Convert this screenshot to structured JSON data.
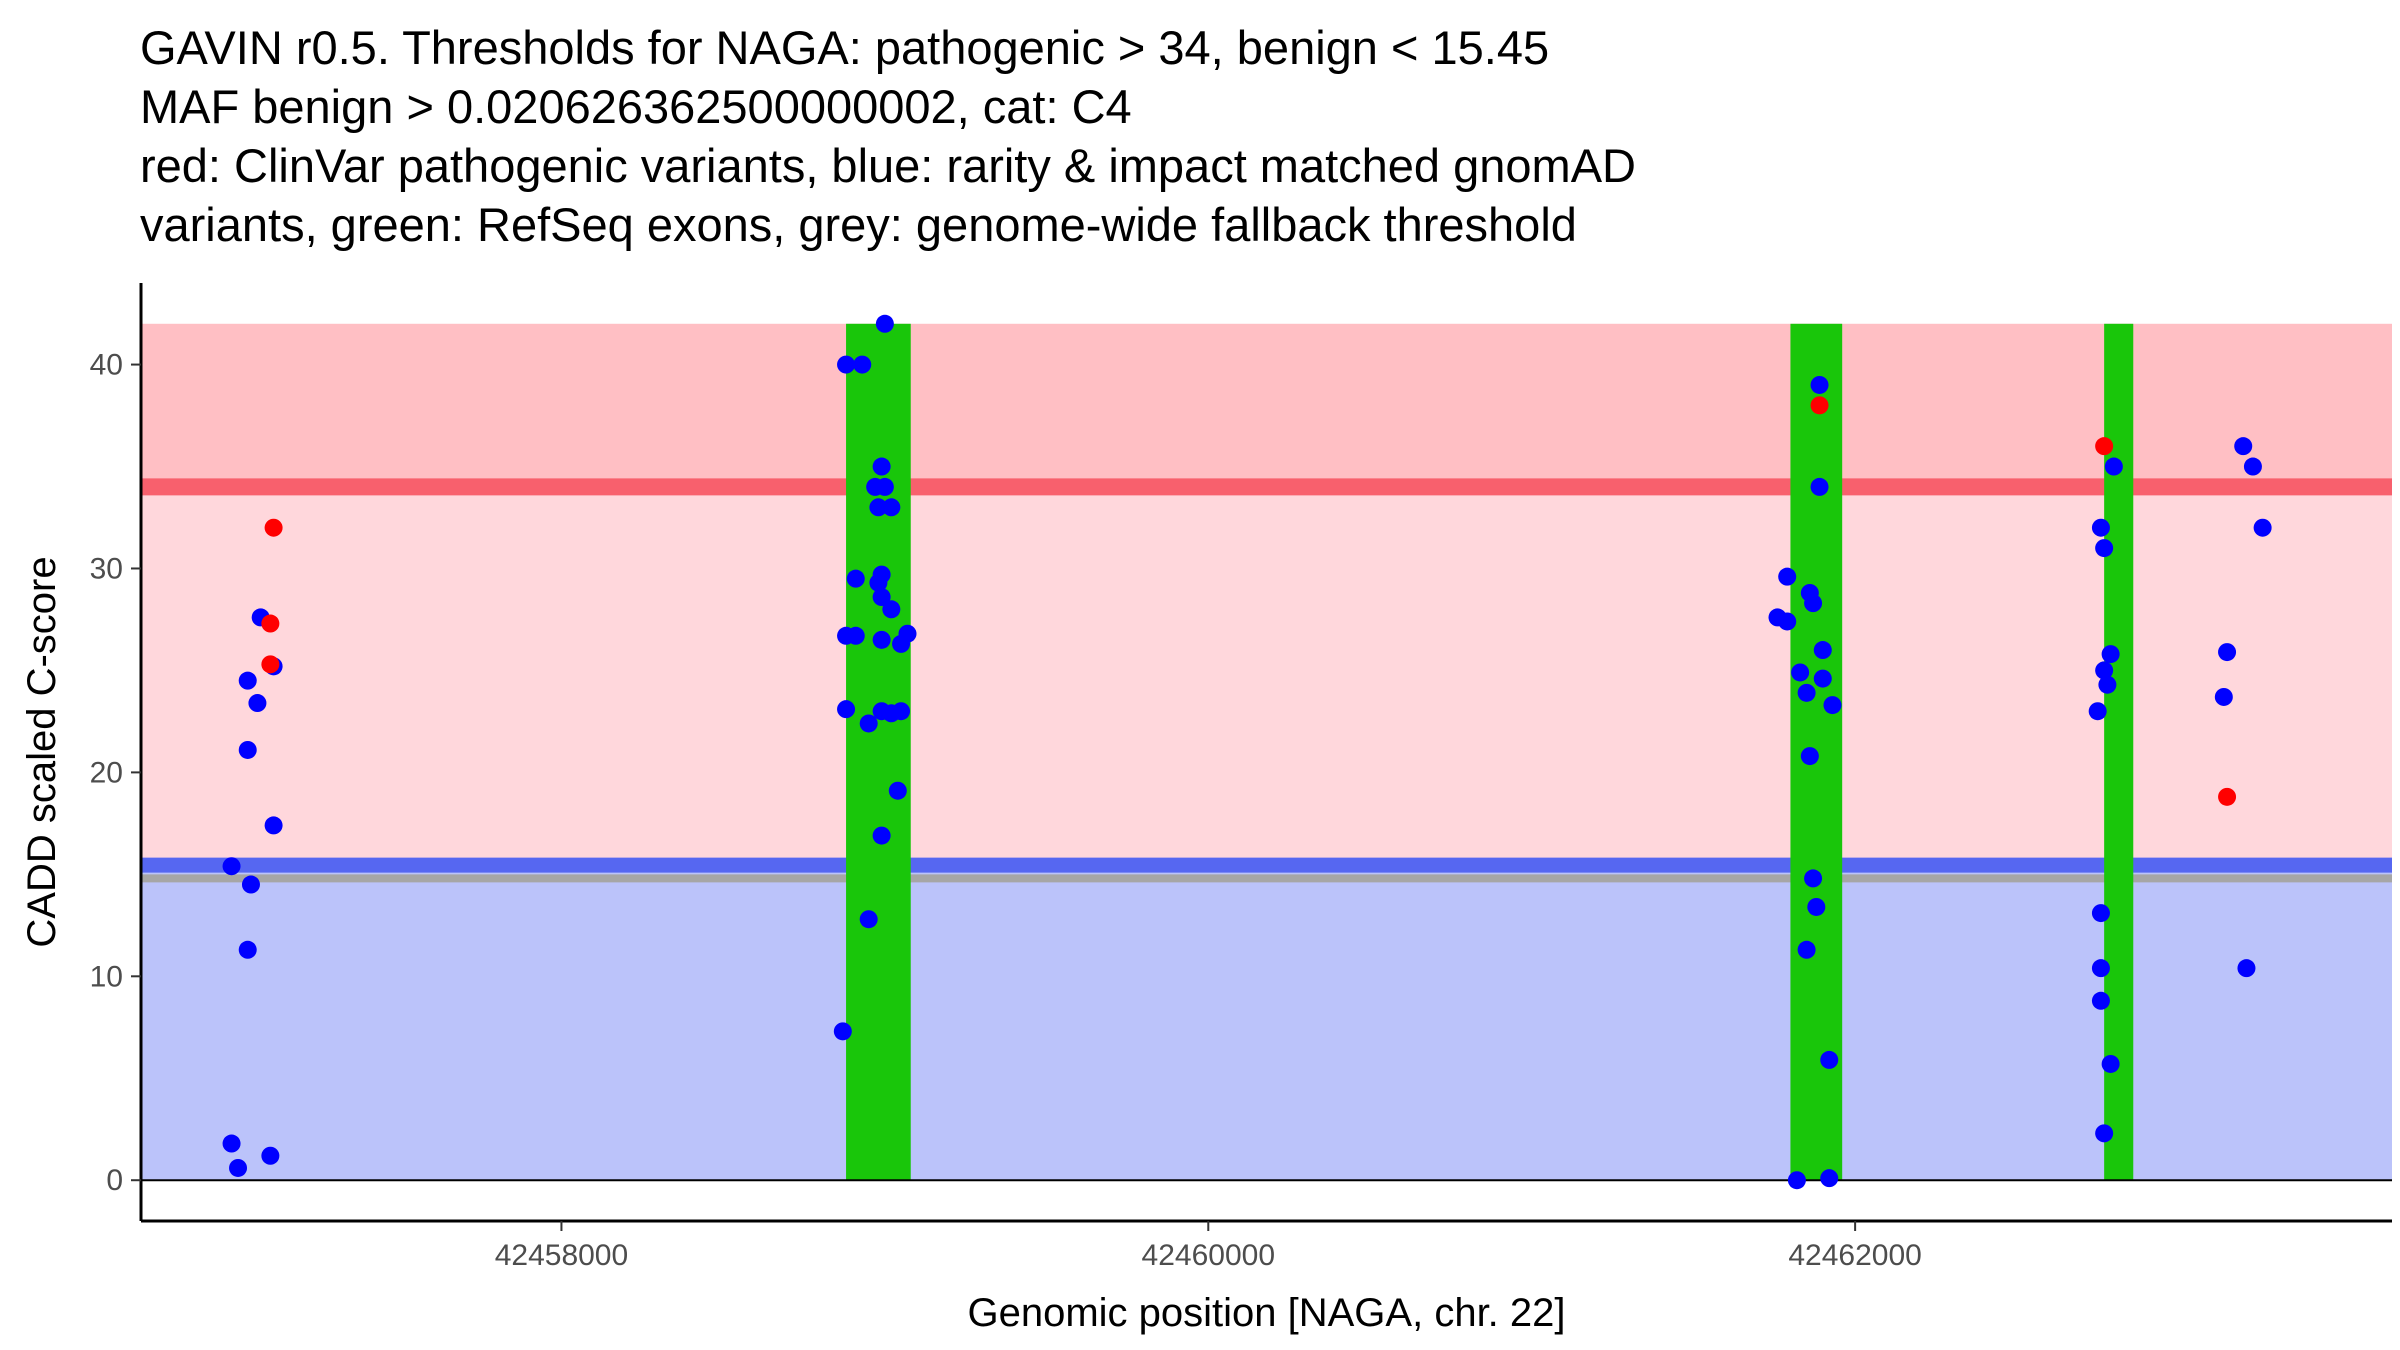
{
  "title_lines": [
    "GAVIN r0.5. Thresholds for NAGA: pathogenic > 34, benign < 15.45",
    "MAF benign > 0.020626362500000002, cat: C4",
    "red: ClinVar pathogenic variants, blue: rarity & impact matched gnomAD",
    "variants, green: RefSeq exons, grey: genome-wide fallback threshold"
  ],
  "colors": {
    "pathogenic_zone": "#ffbfc4",
    "intermediate_zone": "#ffd7dc",
    "benign_zone": "#bbc3fa",
    "pathogenic_line": "#f8606d",
    "benign_line": "#5667f1",
    "fallback_line": "#a6a6a6",
    "exon": "#19c60a",
    "clinvar": "#ff0000",
    "gnomad": "#0000ff"
  },
  "chart_data": {
    "type": "scatter",
    "title": "GAVIN r0.5. Thresholds for NAGA: pathogenic > 34, benign < 15.45",
    "xlabel": "Genomic position [NAGA, chr. 22]",
    "ylabel": "CADD scaled C-score",
    "xlim": [
      42456700,
      42463660
    ],
    "ylim": [
      -2,
      44
    ],
    "x_ticks": [
      42458000,
      42460000,
      42462000
    ],
    "x_tick_labels": [
      "42458000",
      "42460000",
      "42462000"
    ],
    "y_ticks": [
      0,
      10,
      20,
      30,
      40
    ],
    "y_tick_labels": [
      "0",
      "10",
      "20",
      "30",
      "40"
    ],
    "zones": [
      {
        "name": "pathogenic",
        "ymin": 34,
        "ymax": 42,
        "color": "#ffbfc4"
      },
      {
        "name": "intermediate",
        "ymin": 15.45,
        "ymax": 34,
        "color": "#ffd7dc"
      },
      {
        "name": "benign",
        "ymin": 0,
        "ymax": 15.45,
        "color": "#bbc3fa"
      }
    ],
    "thresholds": [
      {
        "name": "pathogenic",
        "value": 34,
        "color": "#f8606d"
      },
      {
        "name": "benign",
        "value": 15.45,
        "color": "#5667f1"
      },
      {
        "name": "genome-wide fallback",
        "value": 14.8,
        "color": "#a6a6a6"
      }
    ],
    "exons": [
      {
        "start": 42458880,
        "end": 42459080
      },
      {
        "start": 42461800,
        "end": 42461960
      },
      {
        "start": 42462770,
        "end": 42462860
      }
    ],
    "series": [
      {
        "name": "ClinVar pathogenic variants",
        "color": "#ff0000",
        "points": [
          [
            42457110,
            32.0
          ],
          [
            42457100,
            27.3
          ],
          [
            42457100,
            25.3
          ],
          [
            42461890,
            38.0
          ],
          [
            42462770,
            36.0
          ],
          [
            42463150,
            18.8
          ]
        ]
      },
      {
        "name": "rarity & impact matched gnomAD variants",
        "color": "#0000ff",
        "points": [
          [
            42457070,
            27.6
          ],
          [
            42457110,
            25.2
          ],
          [
            42457030,
            24.5
          ],
          [
            42457060,
            23.4
          ],
          [
            42457030,
            21.1
          ],
          [
            42457110,
            17.4
          ],
          [
            42456980,
            15.4
          ],
          [
            42457040,
            14.5
          ],
          [
            42457030,
            11.3
          ],
          [
            42456980,
            1.8
          ],
          [
            42457000,
            0.6
          ],
          [
            42457100,
            1.2
          ],
          [
            42459000,
            42.0
          ],
          [
            42458880,
            40.0
          ],
          [
            42458930,
            40.0
          ],
          [
            42458990,
            35.0
          ],
          [
            42458970,
            34.0
          ],
          [
            42459000,
            34.0
          ],
          [
            42458980,
            33.0
          ],
          [
            42459020,
            33.0
          ],
          [
            42458990,
            29.7
          ],
          [
            42458910,
            29.5
          ],
          [
            42458980,
            29.3
          ],
          [
            42458990,
            28.6
          ],
          [
            42459020,
            28.0
          ],
          [
            42459070,
            26.8
          ],
          [
            42458880,
            26.7
          ],
          [
            42458910,
            26.7
          ],
          [
            42458990,
            26.5
          ],
          [
            42459050,
            26.3
          ],
          [
            42458880,
            23.1
          ],
          [
            42458990,
            23.0
          ],
          [
            42459020,
            22.9
          ],
          [
            42459050,
            23.0
          ],
          [
            42458950,
            22.4
          ],
          [
            42459040,
            19.1
          ],
          [
            42458990,
            16.9
          ],
          [
            42458950,
            12.8
          ],
          [
            42458870,
            7.3
          ],
          [
            42461890,
            39.0
          ],
          [
            42461890,
            34.0
          ],
          [
            42461790,
            29.6
          ],
          [
            42461860,
            28.8
          ],
          [
            42461870,
            28.3
          ],
          [
            42461760,
            27.6
          ],
          [
            42461790,
            27.4
          ],
          [
            42461900,
            26.0
          ],
          [
            42461830,
            24.9
          ],
          [
            42461900,
            24.6
          ],
          [
            42461850,
            23.9
          ],
          [
            42461930,
            23.3
          ],
          [
            42461860,
            20.8
          ],
          [
            42461870,
            14.8
          ],
          [
            42461880,
            13.4
          ],
          [
            42461850,
            11.3
          ],
          [
            42461920,
            5.9
          ],
          [
            42461820,
            0.0
          ],
          [
            42461920,
            0.1
          ],
          [
            42462760,
            32.0
          ],
          [
            42462770,
            31.0
          ],
          [
            42462800,
            35.0
          ],
          [
            42462790,
            25.8
          ],
          [
            42462770,
            25.0
          ],
          [
            42462780,
            24.3
          ],
          [
            42462750,
            23.0
          ],
          [
            42462760,
            13.1
          ],
          [
            42462760,
            10.4
          ],
          [
            42462760,
            8.8
          ],
          [
            42462790,
            5.7
          ],
          [
            42462770,
            2.3
          ],
          [
            42463200,
            36.0
          ],
          [
            42463230,
            35.0
          ],
          [
            42463260,
            32.0
          ],
          [
            42463150,
            25.9
          ],
          [
            42463140,
            23.7
          ],
          [
            42463210,
            10.4
          ]
        ]
      }
    ]
  }
}
